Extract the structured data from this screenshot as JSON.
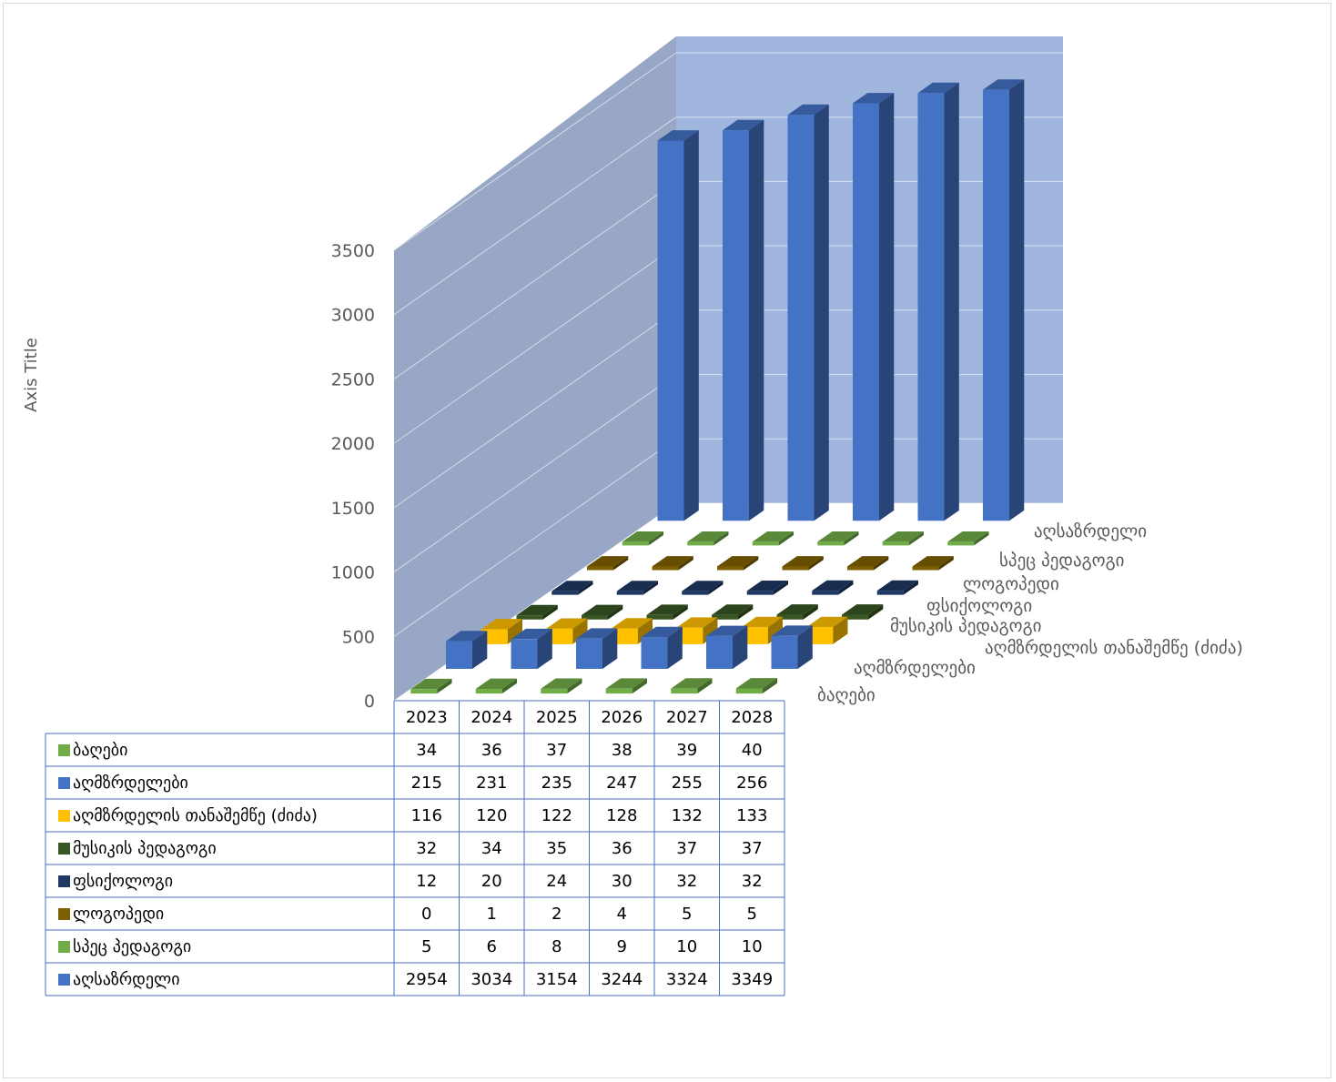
{
  "chart_data": {
    "type": "bar",
    "style": "3d-column-with-data-table",
    "ylabel": "Axis Title",
    "ylim": [
      0,
      3500
    ],
    "yticks": [
      0,
      500,
      1000,
      1500,
      2000,
      2500,
      3000,
      3500
    ],
    "categories": [
      "2023",
      "2024",
      "2025",
      "2026",
      "2027",
      "2028"
    ],
    "gridlines": true,
    "legend": "in-table",
    "series": [
      {
        "name": "ბაღები",
        "color": "#70ad47",
        "values": [
          34,
          36,
          37,
          38,
          39,
          40
        ]
      },
      {
        "name": "აღმზრდელები",
        "color": "#4472c4",
        "values": [
          215,
          231,
          235,
          247,
          255,
          256
        ]
      },
      {
        "name": "აღმზრდელის თანაშემწე (ძიძა)",
        "color": "#ffc000",
        "values": [
          116,
          120,
          122,
          128,
          132,
          133
        ]
      },
      {
        "name": "მუსიკის პედაგოგი",
        "color": "#375623",
        "values": [
          32,
          34,
          35,
          36,
          37,
          37
        ]
      },
      {
        "name": "ფსიქოლოგი",
        "color": "#1f3864",
        "values": [
          12,
          20,
          24,
          30,
          32,
          32
        ]
      },
      {
        "name": "ლოგოპედი",
        "color": "#7f6000",
        "values": [
          0,
          1,
          2,
          4,
          5,
          5
        ]
      },
      {
        "name": "სპეც პედაგოგი",
        "color": "#70ad47",
        "values": [
          5,
          6,
          8,
          9,
          10,
          10
        ]
      },
      {
        "name": "აღსაზრდელი",
        "color": "#4472c4",
        "values": [
          2954,
          3034,
          3154,
          3244,
          3324,
          3349
        ]
      }
    ]
  }
}
